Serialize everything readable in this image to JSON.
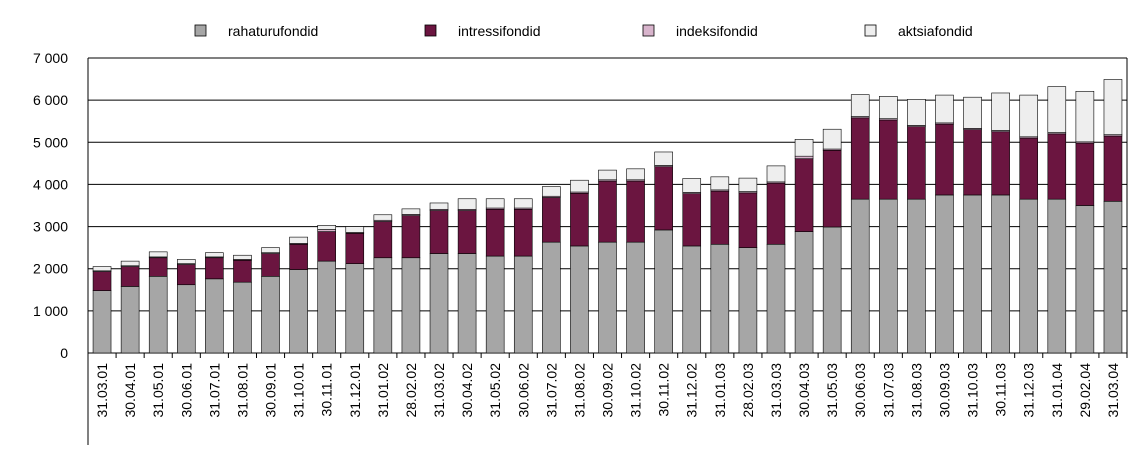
{
  "chart_data": {
    "type": "bar",
    "stacked": true,
    "categories": [
      "31.03.01",
      "30.04.01",
      "31.05.01",
      "30.06.01",
      "31.07.01",
      "31.08.01",
      "30.09.01",
      "31.10.01",
      "30.11.01",
      "31.12.01",
      "31.01.02",
      "28.02.02",
      "31.03.02",
      "30.04.02",
      "31.05.02",
      "30.06.02",
      "31.07.02",
      "31.08.02",
      "30.09.02",
      "31.10.02",
      "30.11.02",
      "31.12.02",
      "31.01.03",
      "28.02.03",
      "31.03.03",
      "30.04.03",
      "31.05.03",
      "30.06.03",
      "31.07.03",
      "31.08.03",
      "30.09.03",
      "31.10.03",
      "30.11.03",
      "31.12.03",
      "31.01.04",
      "29.02.04",
      "31.03.04"
    ],
    "series": [
      {
        "name": "rahaturufondid",
        "color": "#a6a6a6",
        "values": [
          1480,
          1580,
          1820,
          1620,
          1760,
          1680,
          1820,
          1980,
          2180,
          2120,
          2260,
          2260,
          2360,
          2360,
          2300,
          2300,
          2630,
          2540,
          2630,
          2630,
          2920,
          2540,
          2580,
          2500,
          2580,
          2880,
          2990,
          3650,
          3650,
          3650,
          3750,
          3750,
          3750,
          3650,
          3650,
          3500,
          3600
        ]
      },
      {
        "name": "intressifondid",
        "color": "#6b1540",
        "values": [
          450,
          470,
          440,
          480,
          500,
          520,
          540,
          600,
          700,
          720,
          860,
          1000,
          1020,
          1020,
          1110,
          1110,
          1060,
          1250,
          1450,
          1450,
          1500,
          1240,
          1260,
          1300,
          1450,
          1730,
          1820,
          1930,
          1880,
          1720,
          1680,
          1550,
          1500,
          1450,
          1550,
          1480,
          1550
        ]
      },
      {
        "name": "indeksifondid",
        "color": "#d8b4cc",
        "values": [
          20,
          20,
          20,
          20,
          20,
          20,
          20,
          20,
          50,
          20,
          30,
          30,
          30,
          30,
          30,
          30,
          30,
          30,
          30,
          30,
          30,
          30,
          30,
          30,
          30,
          60,
          30,
          30,
          30,
          30,
          30,
          30,
          30,
          30,
          30,
          30,
          30
        ]
      },
      {
        "name": "aktsiafondid",
        "color": "#eeeeee",
        "values": [
          100,
          110,
          120,
          100,
          100,
          100,
          120,
          150,
          100,
          140,
          130,
          130,
          150,
          250,
          220,
          220,
          230,
          280,
          230,
          260,
          320,
          330,
          310,
          320,
          380,
          400,
          470,
          520,
          530,
          620,
          660,
          740,
          890,
          990,
          1090,
          1200,
          1310
        ]
      }
    ],
    "ylim": [
      0,
      7000
    ],
    "yticks": [
      0,
      {
        "value": 1000,
        "label": "1 000"
      },
      {
        "value": 2000,
        "label": "2 000"
      },
      {
        "value": 3000,
        "label": "3 000"
      },
      {
        "value": 4000,
        "label": "4 000"
      },
      {
        "value": 5000,
        "label": "5 000"
      },
      {
        "value": 6000,
        "label": "6 000"
      },
      {
        "value": 7000,
        "label": "7 000"
      }
    ],
    "grid": true,
    "legend": "top"
  }
}
